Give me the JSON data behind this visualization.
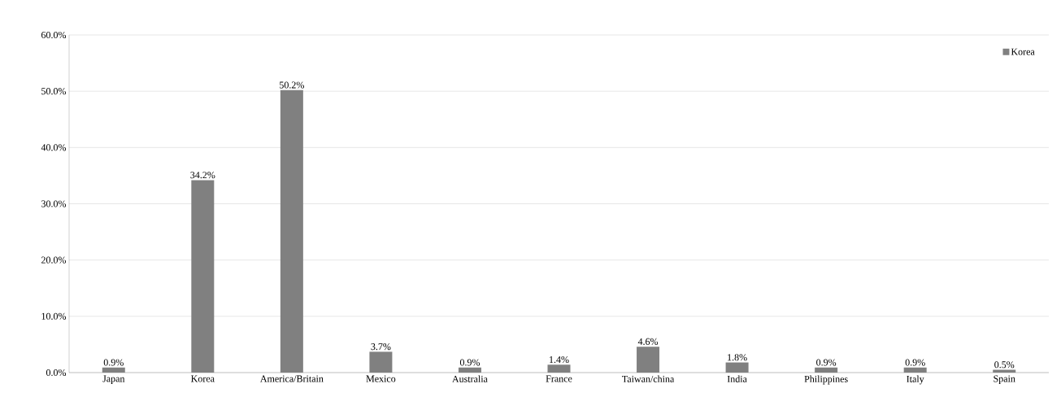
{
  "chart_data": {
    "type": "bar",
    "categories": [
      "Japan",
      "Korea",
      "America/Britain",
      "Mexico",
      "Australia",
      "France",
      "Taiwan/china",
      "India",
      "Philippines",
      "Italy",
      "Spain"
    ],
    "series": [
      {
        "name": "Korea",
        "color": "#808080",
        "values": [
          0.9,
          34.2,
          50.2,
          3.7,
          0.9,
          1.4,
          4.6,
          1.8,
          0.9,
          0.9,
          0.5
        ],
        "value_labels": [
          "0.9%",
          "34.2%",
          "50.2%",
          "3.7%",
          "0.9%",
          "1.4%",
          "4.6%",
          "1.8%",
          "0.9%",
          "0.9%",
          "0.5%"
        ]
      }
    ],
    "ylim": [
      0,
      60
    ],
    "yticks": [
      {
        "value": 0,
        "label": "0.0%"
      },
      {
        "value": 10,
        "label": "10.0%"
      },
      {
        "value": 20,
        "label": "20.0%"
      },
      {
        "value": 30,
        "label": "30.0%"
      },
      {
        "value": 40,
        "label": "40.0%"
      },
      {
        "value": 50,
        "label": "50.0%"
      },
      {
        "value": 60,
        "label": "60.0%"
      }
    ],
    "grid": "y",
    "legend": "top right"
  }
}
